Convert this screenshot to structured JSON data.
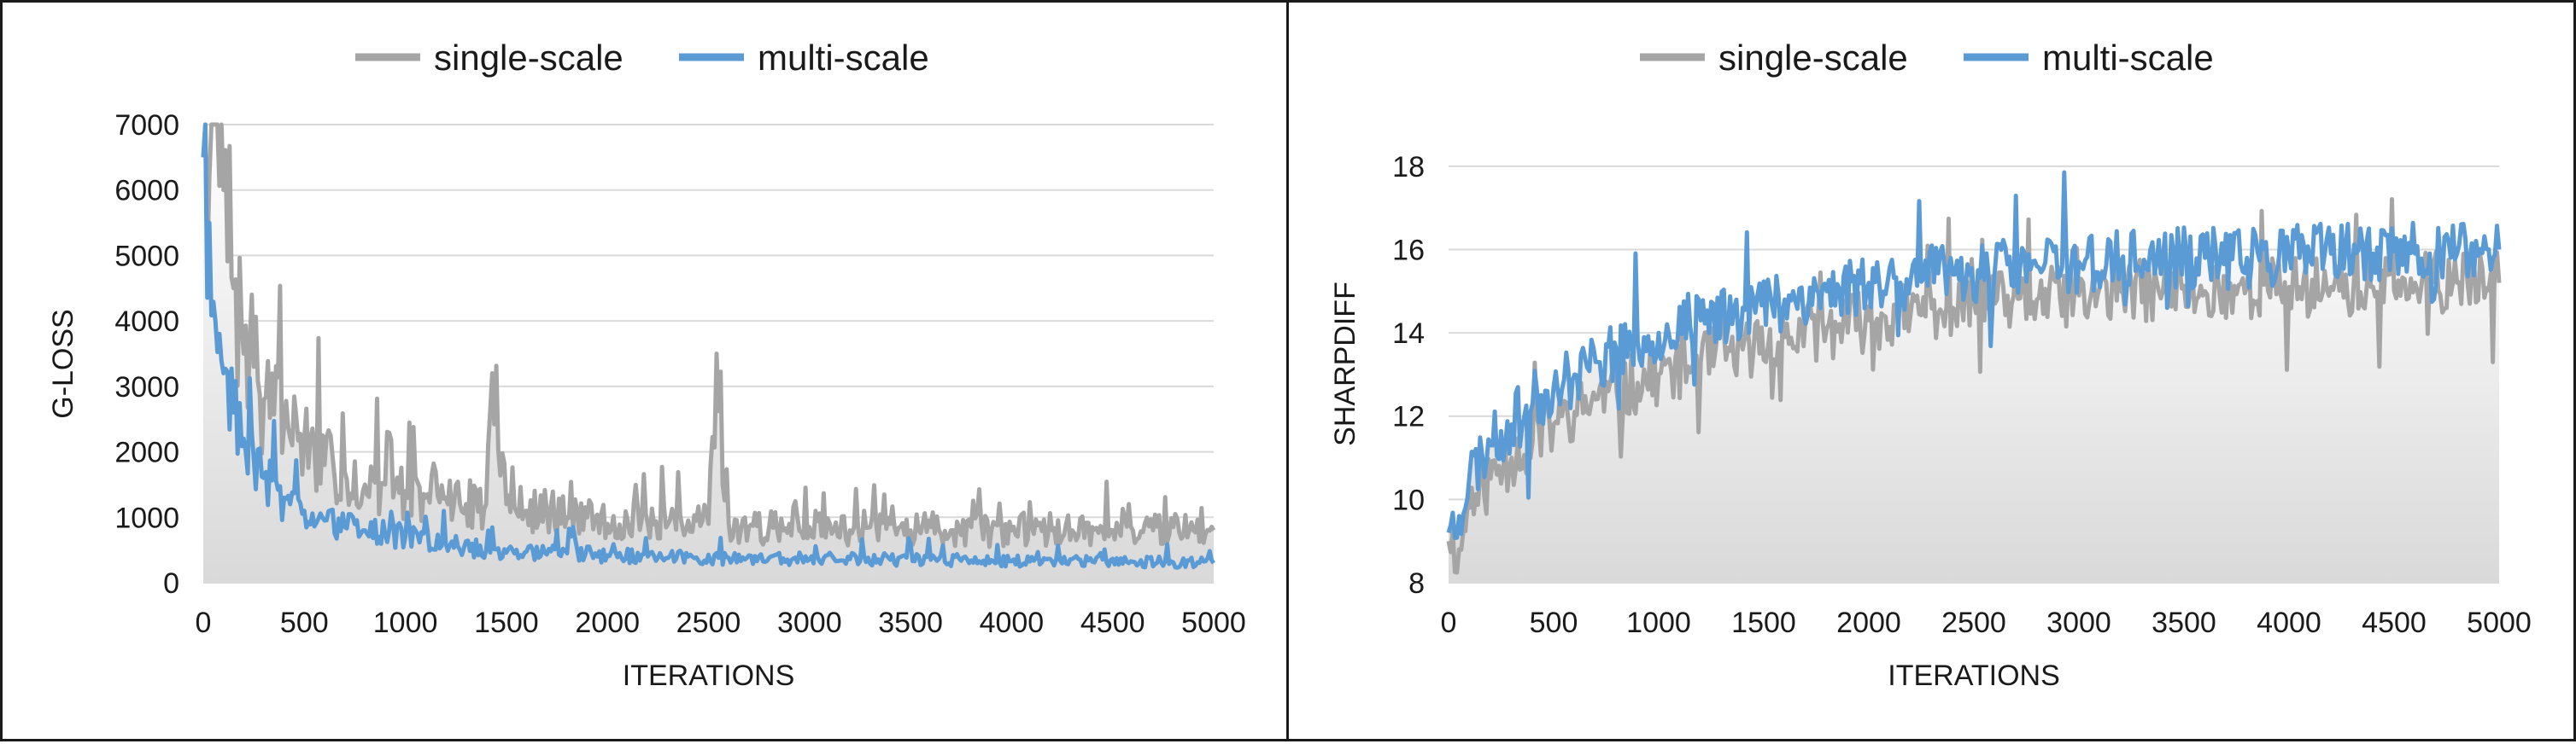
{
  "chart_data": [
    {
      "type": "line",
      "ylabel": "G-LOSS",
      "xlabel": "ITERATIONS",
      "xlim": [
        0,
        5000
      ],
      "ylim": [
        0,
        7000
      ],
      "x_ticks": [
        "0",
        "500",
        "1000",
        "1500",
        "2000",
        "2500",
        "3000",
        "3500",
        "4000",
        "4500",
        "5000"
      ],
      "y_ticks": [
        "0",
        "1000",
        "2000",
        "3000",
        "4000",
        "5000",
        "6000",
        "7000"
      ],
      "grid": true,
      "legend_position": "top",
      "series": [
        {
          "name": "single-scale",
          "color": "#a5a5a5",
          "x": [
            0,
            50,
            100,
            150,
            200,
            250,
            300,
            400,
            500,
            600,
            700,
            800,
            900,
            1000,
            1100,
            1200,
            1300,
            1400,
            1430,
            1500,
            1600,
            1700,
            1800,
            1900,
            2000,
            2100,
            2200,
            2300,
            2400,
            2500,
            2540,
            2600,
            2700,
            2800,
            2900,
            3000,
            3100,
            3200,
            3300,
            3400,
            3500,
            3600,
            3700,
            3800,
            3900,
            4000,
            4100,
            4200,
            4300,
            4400,
            4500,
            4600,
            4700,
            4800,
            4900,
            5000
          ],
          "values": [
            6500,
            7000,
            6000,
            4500,
            3500,
            3300,
            2800,
            2400,
            2200,
            1800,
            1700,
            1500,
            1500,
            1400,
            1300,
            1300,
            1200,
            1200,
            3200,
            1200,
            1100,
            1100,
            1000,
            1000,
            900,
            950,
            900,
            900,
            950,
            900,
            3500,
            900,
            850,
            850,
            900,
            850,
            900,
            800,
            850,
            900,
            800,
            850,
            800,
            850,
            800,
            800,
            850,
            800,
            800,
            850,
            800,
            800,
            800,
            850,
            800,
            800
          ]
        },
        {
          "name": "multi-scale",
          "color": "#5b9bd5",
          "x": [
            0,
            30,
            60,
            100,
            150,
            200,
            250,
            300,
            400,
            500,
            600,
            700,
            800,
            900,
            1000,
            1200,
            1400,
            1600,
            1800,
            2000,
            2200,
            2400,
            2600,
            2800,
            3000,
            3200,
            3400,
            3600,
            3800,
            4000,
            4200,
            4400,
            4600,
            4800,
            5000
          ],
          "values": [
            6500,
            5500,
            4000,
            3200,
            2600,
            2200,
            1900,
            1600,
            1300,
            1100,
            950,
            850,
            800,
            750,
            700,
            600,
            500,
            480,
            450,
            420,
            400,
            400,
            380,
            380,
            360,
            360,
            350,
            350,
            340,
            330,
            330,
            320,
            320,
            310,
            300
          ]
        }
      ]
    },
    {
      "type": "line",
      "ylabel": "SHARPDIFF",
      "xlabel": "ITERATIONS",
      "xlim": [
        0,
        5000
      ],
      "ylim": [
        8,
        19
      ],
      "x_ticks": [
        "0",
        "500",
        "1000",
        "1500",
        "2000",
        "2500",
        "3000",
        "3500",
        "4000",
        "4500",
        "5000"
      ],
      "y_ticks": [
        "8",
        "10",
        "12",
        "14",
        "16",
        "18"
      ],
      "grid": true,
      "legend_position": "top",
      "series": [
        {
          "name": "single-scale",
          "color": "#a5a5a5",
          "x": [
            0,
            50,
            100,
            200,
            300,
            400,
            500,
            600,
            700,
            800,
            900,
            1000,
            1200,
            1400,
            1600,
            1800,
            2000,
            2200,
            2400,
            2600,
            2800,
            3000,
            3200,
            3400,
            3600,
            3800,
            4000,
            4200,
            4400,
            4600,
            4800,
            5000
          ],
          "values": [
            9.0,
            8.8,
            9.8,
            10.5,
            11.0,
            11.4,
            11.8,
            12.1,
            12.4,
            12.6,
            12.8,
            13.0,
            13.3,
            13.6,
            13.9,
            14.1,
            14.3,
            14.5,
            14.6,
            14.7,
            14.8,
            14.9,
            15.0,
            15.0,
            15.0,
            15.1,
            15.1,
            15.1,
            15.1,
            15.2,
            15.2,
            15.2
          ]
        },
        {
          "name": "multi-scale",
          "color": "#5b9bd5",
          "x": [
            0,
            50,
            100,
            200,
            300,
            400,
            500,
            600,
            700,
            800,
            900,
            1000,
            1200,
            1400,
            1600,
            1800,
            2000,
            2200,
            2400,
            2600,
            2800,
            3000,
            3200,
            3400,
            3600,
            3800,
            4000,
            4200,
            4400,
            4600,
            4800,
            5000
          ],
          "values": [
            9.2,
            9.6,
            10.6,
            11.3,
            11.8,
            12.3,
            12.7,
            13.0,
            13.3,
            13.6,
            13.8,
            14.0,
            14.3,
            14.6,
            14.8,
            15.0,
            15.2,
            15.3,
            15.4,
            15.5,
            15.6,
            15.7,
            15.7,
            15.8,
            15.8,
            15.8,
            15.9,
            15.9,
            15.9,
            15.9,
            15.9,
            16.0
          ]
        }
      ]
    }
  ]
}
